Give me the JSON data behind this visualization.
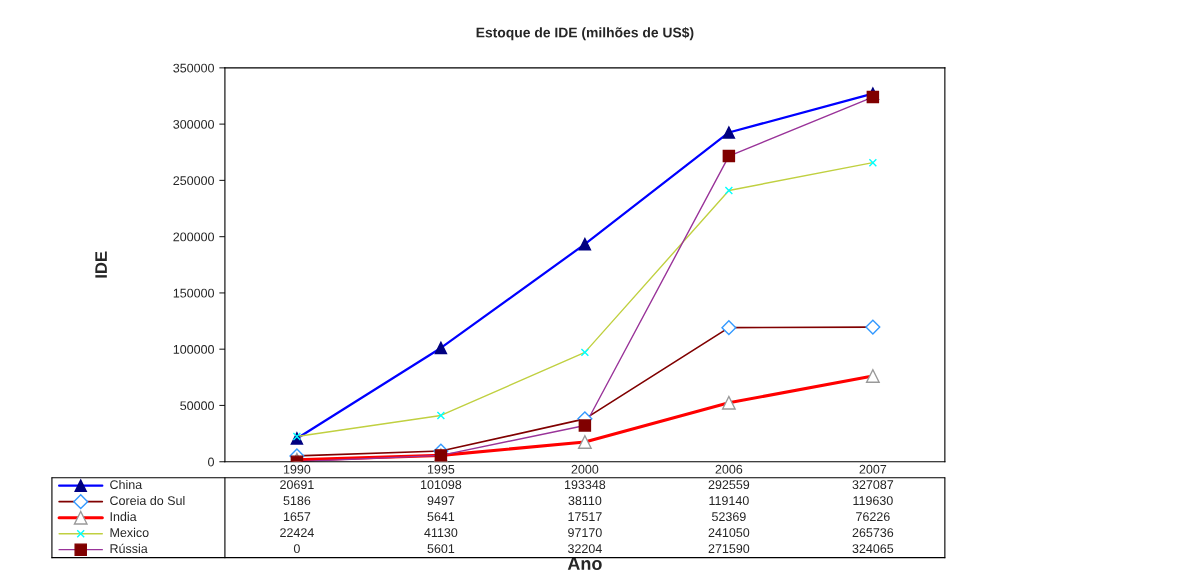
{
  "chart_data": {
    "type": "line",
    "title": "Estoque de IDE (milhões de US$)",
    "xlabel": "Ano",
    "ylabel": "IDE",
    "categories": [
      "1990",
      "1995",
      "2000",
      "2006",
      "2007"
    ],
    "ylim": [
      0,
      350000
    ],
    "yticks": [
      0,
      50000,
      100000,
      150000,
      200000,
      250000,
      300000,
      350000
    ],
    "grid": false,
    "legend": "bottom",
    "data_labels": true,
    "series": [
      {
        "name": "China",
        "color": "#0000ff",
        "marker": "triangle",
        "values": [
          20691,
          101098,
          193348,
          292559,
          327087
        ]
      },
      {
        "name": "Coreia do Sul",
        "color": "#800000",
        "marker": "diamond",
        "values": [
          5186,
          9497,
          38110,
          119140,
          119630
        ]
      },
      {
        "name": "India",
        "color": "#ff0000",
        "marker": "triangle",
        "values": [
          1657,
          5641,
          17517,
          52369,
          76226
        ]
      },
      {
        "name": "Mexico",
        "color": "#c0d040",
        "marker": "cross",
        "values": [
          22424,
          41130,
          97170,
          241050,
          265736
        ]
      },
      {
        "name": "Rússia",
        "color": "#993399",
        "marker": "square",
        "values": [
          0,
          5601,
          32204,
          271590,
          324065
        ]
      }
    ]
  }
}
